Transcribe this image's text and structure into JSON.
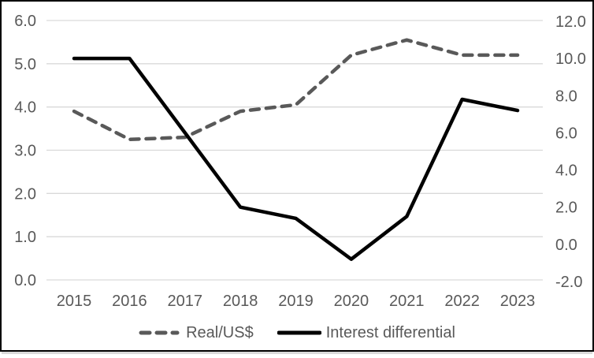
{
  "chart_data": {
    "type": "line",
    "title": "",
    "categories": [
      "2015",
      "2016",
      "2017",
      "2018",
      "2019",
      "2020",
      "2021",
      "2022",
      "2023"
    ],
    "series": [
      {
        "name": "Real/US$",
        "axis": "left",
        "style": "dashed",
        "color": "#595959",
        "values": [
          3.9,
          3.25,
          3.3,
          3.9,
          4.05,
          5.2,
          5.55,
          5.2,
          5.2
        ]
      },
      {
        "name": "Interest differential",
        "axis": "right",
        "style": "solid",
        "color": "#000000",
        "values": [
          10.0,
          10.0,
          6.0,
          2.0,
          1.4,
          -0.8,
          1.5,
          7.8,
          7.2
        ]
      }
    ],
    "left_axis": {
      "min": 0.0,
      "max": 6.0,
      "step": 1.0,
      "tick_labels": [
        "6.0",
        "5.0",
        "4.0",
        "3.0",
        "2.0",
        "1.0",
        "0.0"
      ]
    },
    "right_axis": {
      "min": -2.0,
      "max": 12.0,
      "step": 2.0,
      "tick_labels": [
        "12.0",
        "10.0",
        "8.0",
        "6.0",
        "4.0",
        "2.0",
        "0.0",
        "-2.0"
      ]
    },
    "grid": "horizontal-only",
    "legend_position": "bottom",
    "colors": {
      "gridline": "#d9d9d9",
      "tick_label": "#595959",
      "frame_border": "#000000",
      "background": "#ffffff"
    }
  },
  "legend": {
    "items": [
      {
        "label": "Real/US$"
      },
      {
        "label": "Interest differential"
      }
    ]
  }
}
